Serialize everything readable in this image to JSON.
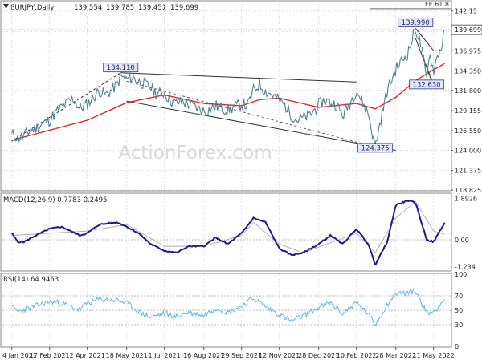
{
  "chart_data": [
    {
      "type": "candlestick",
      "title": "EURJPY,Daily",
      "ohlc": [
        "139.554",
        "139.785",
        "139.451",
        "139.699"
      ],
      "last_price": 139.699,
      "ylim": [
        118.825,
        143.375
      ],
      "yticks": [
        "142.15",
        "139.475",
        "136.975",
        "134.350",
        "131.800",
        "129.155",
        "126.550",
        "124.000",
        "121.375",
        "118.825"
      ],
      "xticks": [
        "4 Jan 2021",
        "17 Feb 2021",
        "2 Apr 2021",
        "18 May 2021",
        "1 Jul 2021",
        "16 Aug 2021",
        "29 Sep 2021",
        "12 Nov 2021",
        "28 Dec 2021",
        "10 Feb 2022",
        "28 Mar 2022",
        "11 May 2022"
      ],
      "annotations": [
        {
          "label": "134.110",
          "x": "11 May 2021",
          "y": 134.11
        },
        {
          "label": "124.375",
          "x": "4 Mar 2022",
          "y": 124.375
        },
        {
          "label": "139.990",
          "x": "20 Apr 2022",
          "y": 139.99
        },
        {
          "label": "132.630",
          "x": "3 May 2022",
          "y": 132.63
        }
      ],
      "fib_label": "FE 61.8",
      "fib_level": 142.45,
      "trendlines": [
        {
          "from": [
            "11 May 2021",
            134.1
          ],
          "to": [
            "10 Feb 2022",
            132.9
          ]
        },
        {
          "from": [
            "18 May 2021",
            130.4
          ],
          "to": [
            "28 Mar 2022",
            124.0
          ]
        },
        {
          "from": [
            "4 Jan 2021",
            125.2
          ],
          "to": [
            "11 May 2021",
            134.1
          ]
        }
      ],
      "price_series": [
        [
          "4 Jan 2021",
          126.2
        ],
        [
          "11 Jan 2021",
          125.6
        ],
        [
          "18 Jan 2021",
          125.9
        ],
        [
          "25 Jan 2021",
          126.5
        ],
        [
          "1 Feb 2021",
          126.9
        ],
        [
          "8 Feb 2021",
          127.4
        ],
        [
          "17 Feb 2021",
          127.9
        ],
        [
          "24 Feb 2021",
          128.9
        ],
        [
          "3 Mar 2021",
          129.6
        ],
        [
          "10 Mar 2021",
          130.2
        ],
        [
          "17 Mar 2021",
          130.7
        ],
        [
          "24 Mar 2021",
          129.4
        ],
        [
          "2 Apr 2021",
          130.0
        ],
        [
          "9 Apr 2021",
          130.9
        ],
        [
          "16 Apr 2021",
          131.8
        ],
        [
          "23 Apr 2021",
          131.2
        ],
        [
          "30 Apr 2021",
          131.8
        ],
        [
          "7 May 2021",
          132.6
        ],
        [
          "11 May 2021",
          133.6
        ],
        [
          "18 May 2021",
          133.2
        ],
        [
          "25 May 2021",
          133.5
        ],
        [
          "1 Jun 2021",
          133.0
        ],
        [
          "8 Jun 2021",
          132.6
        ],
        [
          "15 Jun 2021",
          132.2
        ],
        [
          "22 Jun 2021",
          131.4
        ],
        [
          "1 Jul 2021",
          131.5
        ],
        [
          "8 Jul 2021",
          130.5
        ],
        [
          "15 Jul 2021",
          130.1
        ],
        [
          "22 Jul 2021",
          130.4
        ],
        [
          "29 Jul 2021",
          130.0
        ],
        [
          "5 Aug 2021",
          129.7
        ],
        [
          "16 Aug 2021",
          129.1
        ],
        [
          "23 Aug 2021",
          129.3
        ],
        [
          "30 Aug 2021",
          129.8
        ],
        [
          "6 Sep 2021",
          129.5
        ],
        [
          "13 Sep 2021",
          129.2
        ],
        [
          "20 Sep 2021",
          129.6
        ],
        [
          "29 Sep 2021",
          130.0
        ],
        [
          "6 Oct 2021",
          129.8
        ],
        [
          "13 Oct 2021",
          131.8
        ],
        [
          "20 Oct 2021",
          132.6
        ],
        [
          "27 Oct 2021",
          131.7
        ],
        [
          "3 Nov 2021",
          131.3
        ],
        [
          "12 Nov 2021",
          130.5
        ],
        [
          "19 Nov 2021",
          129.8
        ],
        [
          "26 Nov 2021",
          128.6
        ],
        [
          "3 Dec 2021",
          127.9
        ],
        [
          "10 Dec 2021",
          128.2
        ],
        [
          "17 Dec 2021",
          128.5
        ],
        [
          "28 Dec 2021",
          129.9
        ],
        [
          "4 Jan 2022",
          130.6
        ],
        [
          "11 Jan 2022",
          130.2
        ],
        [
          "18 Jan 2022",
          129.9
        ],
        [
          "25 Jan 2022",
          128.5
        ],
        [
          "1 Feb 2022",
          129.8
        ],
        [
          "10 Feb 2022",
          131.9
        ],
        [
          "17 Feb 2022",
          130.2
        ],
        [
          "24 Feb 2022",
          128.8
        ],
        [
          "4 Mar 2022",
          124.4
        ],
        [
          "11 Mar 2022",
          128.3
        ],
        [
          "18 Mar 2022",
          131.8
        ],
        [
          "28 Mar 2022",
          134.6
        ],
        [
          "4 Apr 2022",
          135.7
        ],
        [
          "11 Apr 2022",
          136.6
        ],
        [
          "20 Apr 2022",
          139.9
        ],
        [
          "26 Apr 2022",
          137.8
        ],
        [
          "3 May 2022",
          133.2
        ],
        [
          "6 May 2022",
          136.9
        ],
        [
          "11 May 2022",
          134.4
        ],
        [
          "16 May 2022",
          136.5
        ],
        [
          "20 May 2022",
          137.3
        ],
        [
          "24 May 2022",
          139.7
        ]
      ],
      "ma_series": [
        [
          "4 Jan 2021",
          125.3
        ],
        [
          "2 Apr 2021",
          127.9
        ],
        [
          "18 May 2021",
          130.2
        ],
        [
          "1 Jul 2021",
          131.2
        ],
        [
          "16 Aug 2021",
          130.1
        ],
        [
          "29 Sep 2021",
          129.8
        ],
        [
          "20 Oct 2021",
          130.6
        ],
        [
          "12 Nov 2021",
          130.8
        ],
        [
          "28 Dec 2021",
          129.6
        ],
        [
          "10 Feb 2022",
          130.1
        ],
        [
          "4 Mar 2022",
          129.4
        ],
        [
          "28 Mar 2022",
          130.9
        ],
        [
          "20 Apr 2022",
          133.1
        ],
        [
          "11 May 2022",
          134.5
        ],
        [
          "24 May 2022",
          135.3
        ]
      ]
    },
    {
      "type": "line",
      "title": "MACD(12,26,9) 0.7783 0.2495",
      "yticks": [
        "1.8926",
        "0.00",
        "-1.234"
      ],
      "ylim": [
        -1.4,
        2.1
      ],
      "macd": [
        [
          "4 Jan 2021",
          0.3
        ],
        [
          "11 Jan 2021",
          -0.1
        ],
        [
          "18 Jan 2021",
          -0.1
        ],
        [
          "1 Feb 2021",
          0.2
        ],
        [
          "17 Feb 2021",
          0.5
        ],
        [
          "3 Mar 2021",
          0.6
        ],
        [
          "24 Mar 2021",
          0.2
        ],
        [
          "2 Apr 2021",
          0.3
        ],
        [
          "16 Apr 2021",
          0.7
        ],
        [
          "7 May 2021",
          0.8
        ],
        [
          "18 May 2021",
          0.6
        ],
        [
          "1 Jun 2021",
          0.3
        ],
        [
          "15 Jun 2021",
          -0.2
        ],
        [
          "1 Jul 2021",
          -0.5
        ],
        [
          "15 Jul 2021",
          -0.6
        ],
        [
          "29 Jul 2021",
          -0.3
        ],
        [
          "16 Aug 2021",
          -0.3
        ],
        [
          "30 Aug 2021",
          0.1
        ],
        [
          "13 Sep 2021",
          -0.2
        ],
        [
          "29 Sep 2021",
          0.3
        ],
        [
          "13 Oct 2021",
          1.0
        ],
        [
          "27 Oct 2021",
          0.8
        ],
        [
          "12 Nov 2021",
          -0.4
        ],
        [
          "26 Nov 2021",
          -0.7
        ],
        [
          "10 Dec 2021",
          -0.6
        ],
        [
          "28 Dec 2021",
          -0.2
        ],
        [
          "11 Jan 2022",
          0.2
        ],
        [
          "25 Jan 2022",
          -0.2
        ],
        [
          "10 Feb 2022",
          0.5
        ],
        [
          "24 Feb 2022",
          -0.2
        ],
        [
          "4 Mar 2022",
          -1.15
        ],
        [
          "18 Mar 2022",
          -0.1
        ],
        [
          "28 Mar 2022",
          1.6
        ],
        [
          "11 Apr 2022",
          1.8
        ],
        [
          "20 Apr 2022",
          1.7
        ],
        [
          "3 May 2022",
          0.0
        ],
        [
          "11 May 2022",
          -0.1
        ],
        [
          "24 May 2022",
          0.78
        ]
      ],
      "signal": [
        [
          "4 Jan 2021",
          0.2
        ],
        [
          "2 Apr 2021",
          0.4
        ],
        [
          "18 May 2021",
          0.7
        ],
        [
          "1 Jul 2021",
          -0.3
        ],
        [
          "16 Aug 2021",
          -0.3
        ],
        [
          "29 Sep 2021",
          0.2
        ],
        [
          "13 Oct 2021",
          0.8
        ],
        [
          "12 Nov 2021",
          -0.2
        ],
        [
          "10 Dec 2021",
          -0.6
        ],
        [
          "10 Feb 2022",
          0.3
        ],
        [
          "4 Mar 2022",
          -0.6
        ],
        [
          "28 Mar 2022",
          1.0
        ],
        [
          "20 Apr 2022",
          1.75
        ],
        [
          "11 May 2022",
          0.4
        ],
        [
          "24 May 2022",
          0.25
        ]
      ]
    },
    {
      "type": "line",
      "title": "RSI(14) 64.9463",
      "yticks": [
        "100",
        "70",
        "50",
        "30",
        "0"
      ],
      "ylim": [
        0,
        100
      ],
      "rsi": [
        [
          "4 Jan 2021",
          55
        ],
        [
          "11 Jan 2021",
          48
        ],
        [
          "17 Feb 2021",
          62
        ],
        [
          "3 Mar 2021",
          60
        ],
        [
          "24 Mar 2021",
          50
        ],
        [
          "2 Apr 2021",
          60
        ],
        [
          "16 Apr 2021",
          65
        ],
        [
          "7 May 2021",
          64
        ],
        [
          "18 May 2021",
          60
        ],
        [
          "1 Jun 2021",
          48
        ],
        [
          "15 Jun 2021",
          40
        ],
        [
          "1 Jul 2021",
          46
        ],
        [
          "15 Jul 2021",
          41
        ],
        [
          "29 Jul 2021",
          47
        ],
        [
          "16 Aug 2021",
          43
        ],
        [
          "30 Aug 2021",
          53
        ],
        [
          "13 Sep 2021",
          47
        ],
        [
          "29 Sep 2021",
          56
        ],
        [
          "13 Oct 2021",
          67
        ],
        [
          "27 Oct 2021",
          55
        ],
        [
          "12 Nov 2021",
          44
        ],
        [
          "26 Nov 2021",
          35
        ],
        [
          "10 Dec 2021",
          42
        ],
        [
          "28 Dec 2021",
          54
        ],
        [
          "11 Jan 2022",
          60
        ],
        [
          "25 Jan 2022",
          45
        ],
        [
          "10 Feb 2022",
          61
        ],
        [
          "24 Feb 2022",
          44
        ],
        [
          "4 Mar 2022",
          30
        ],
        [
          "18 Mar 2022",
          58
        ],
        [
          "28 Mar 2022",
          74
        ],
        [
          "11 Apr 2022",
          74
        ],
        [
          "20 Apr 2022",
          77
        ],
        [
          "3 May 2022",
          46
        ],
        [
          "11 May 2022",
          48
        ],
        [
          "24 May 2022",
          64.9
        ]
      ]
    }
  ],
  "watermark": "ActionForex.com",
  "colors": {
    "price": "#4d7f8f",
    "ma": "#e8262a",
    "trendline": "#333333",
    "macd": "#1c1c8c",
    "signal": "#b0b0b0",
    "rsi": "#58b8df",
    "grid": "#d5d5d5",
    "label_bg": "#e4e8f6",
    "label_border": "#2f3a8a"
  }
}
